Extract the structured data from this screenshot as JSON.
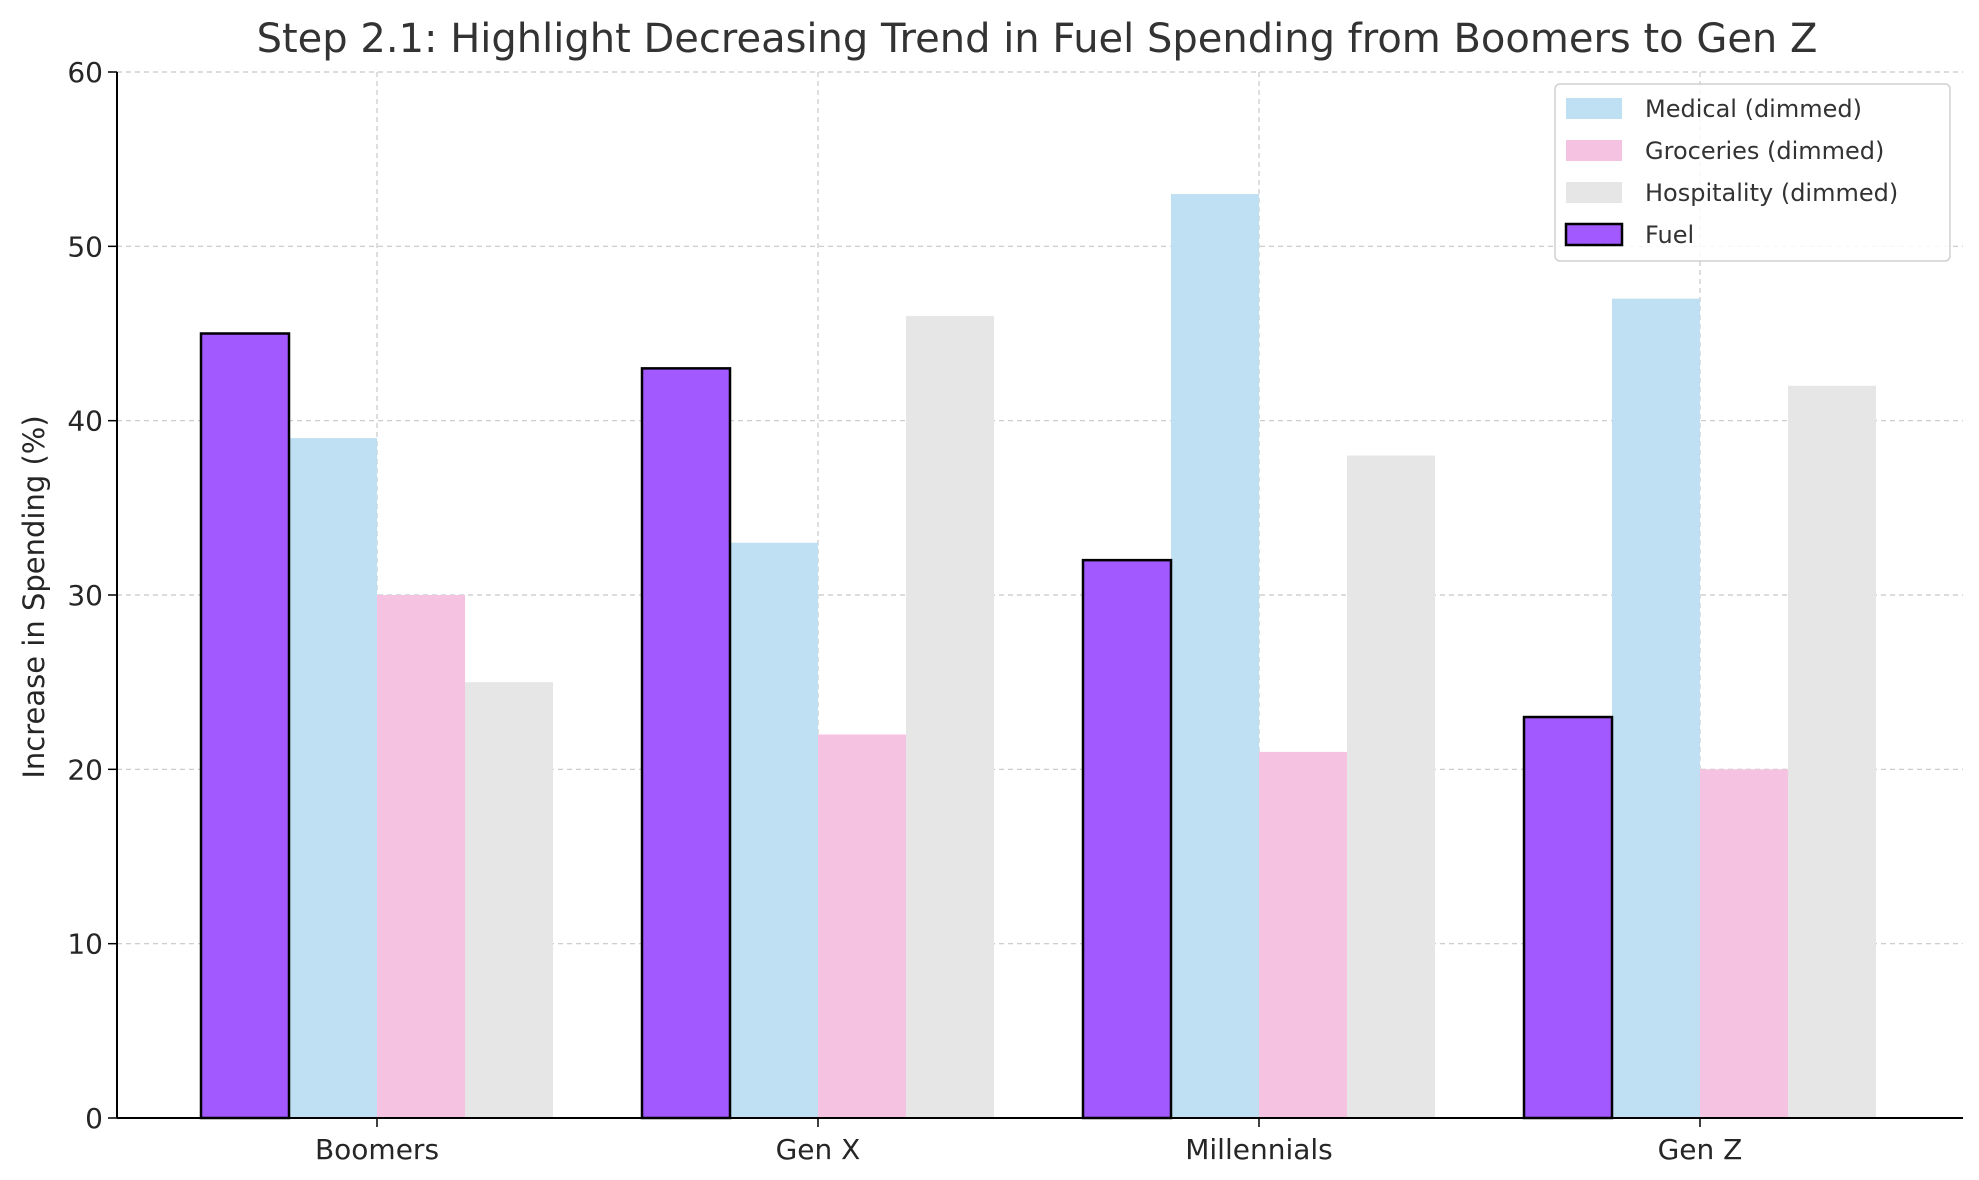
{
  "chart_data": {
    "type": "bar",
    "title": "Step 2.1: Highlight Decreasing Trend in Fuel Spending from Boomers to Gen Z",
    "xlabel": "",
    "ylabel": "Increase in Spending (%)",
    "ylim": [
      0,
      60
    ],
    "yticks": [
      "0",
      "10",
      "20",
      "30",
      "40",
      "50",
      "60"
    ],
    "grid": true,
    "legend_position": "top-right",
    "categories": [
      "Boomers",
      "Gen X",
      "Millennials",
      "Gen Z"
    ],
    "series": [
      {
        "name": "Fuel",
        "values": [
          45,
          43,
          32,
          23
        ],
        "color": "#a259ff",
        "edge": "#000000"
      },
      {
        "name": "Medical (dimmed)",
        "values": [
          39,
          33,
          53,
          47
        ],
        "color": "#bfe0f2",
        "edge": ""
      },
      {
        "name": "Groceries (dimmed)",
        "values": [
          30,
          22,
          21,
          20
        ],
        "color": "#f6c2e2",
        "edge": ""
      },
      {
        "name": "Hospitality (dimmed)",
        "values": [
          25,
          46,
          38,
          42
        ],
        "color": "#e6e6e6",
        "edge": ""
      }
    ],
    "legend_order": [
      "Medical (dimmed)",
      "Groceries (dimmed)",
      "Hospitality (dimmed)",
      "Fuel"
    ]
  }
}
